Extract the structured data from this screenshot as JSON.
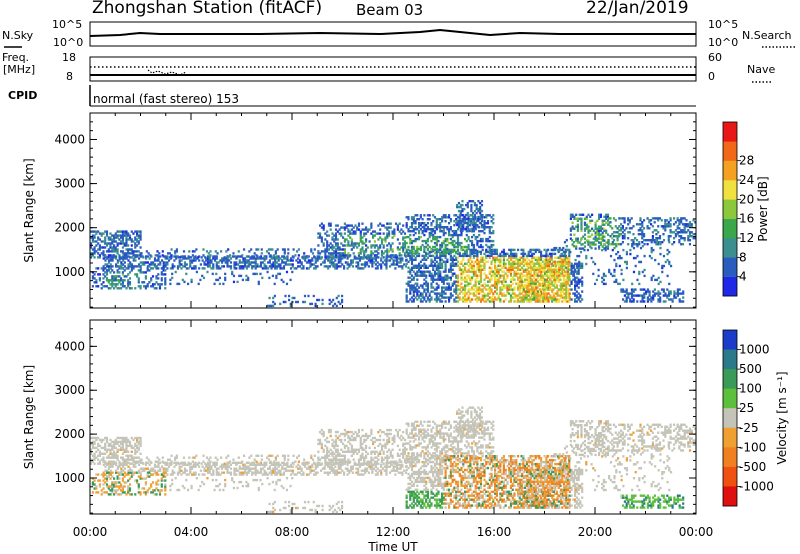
{
  "header": {
    "station": "Zhongshan Station (fitACF)",
    "beam": "Beam 03",
    "date": "22/Jan/2019"
  },
  "top_panels": {
    "nsky_label": "N.Sky",
    "nsky_ticks": [
      "10^5",
      "10^0"
    ],
    "nsearch_label": "N.Search",
    "nsearch_ticks": [
      "10^5",
      "10^0"
    ],
    "freq_label_1": "Freq.",
    "freq_label_2": "[MHz]",
    "freq_ticks": [
      "18",
      "8"
    ],
    "nave_label": "Nave",
    "nave_ticks": [
      "60",
      "0"
    ],
    "cpid_label": "CPID",
    "cpid_text": "normal (fast stereo) 153"
  },
  "chart_data": [
    {
      "type": "heatmap",
      "name": "power-panel",
      "ylabel": "Slant Range [km]",
      "xlabel": "Time UT",
      "x_ticks": [
        "00:00",
        "04:00",
        "08:00",
        "12:00",
        "16:00",
        "20:00",
        "00:00"
      ],
      "y_ticks": [
        1000,
        2000,
        3000,
        4000
      ],
      "ylim": [
        180,
        4600
      ],
      "xlim_hours": [
        0,
        24
      ],
      "colorbar": {
        "label": "Power [dB]",
        "tick_labels": [
          "4",
          "8",
          "12",
          "16",
          "20",
          "24",
          "28"
        ],
        "colors": [
          "#1e28e6",
          "#2a5cc0",
          "#3b8f8f",
          "#3aa84a",
          "#8cc83c",
          "#f0e040",
          "#f4a020",
          "#f06818",
          "#e81818"
        ]
      }
    },
    {
      "type": "heatmap",
      "name": "velocity-panel",
      "ylabel": "Slant Range [km]",
      "xlabel": "Time UT",
      "x_ticks": [
        "00:00",
        "04:00",
        "08:00",
        "12:00",
        "16:00",
        "20:00",
        "00:00"
      ],
      "y_ticks": [
        1000,
        2000,
        3000,
        4000
      ],
      "ylim": [
        180,
        4600
      ],
      "xlim_hours": [
        0,
        24
      ],
      "colorbar": {
        "label": "Velocity  [m s⁻¹]",
        "tick_labels": [
          "1000",
          "500",
          "100",
          "25",
          "-25",
          "-100",
          "-500",
          "-1000"
        ],
        "colors": [
          "#1a3cc8",
          "#2a7a8c",
          "#3a9a58",
          "#5cc03c",
          "#c4c4b8",
          "#f0a030",
          "#f08020",
          "#f05010",
          "#e01010"
        ]
      }
    }
  ]
}
